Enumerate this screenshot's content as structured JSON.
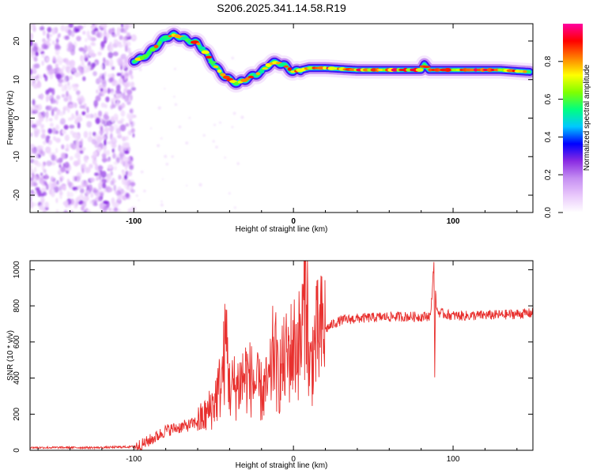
{
  "title": "S206.2025.341.14.58.R19",
  "chart_data": [
    {
      "type": "heatmap",
      "xlabel": "Height of straight line (km)",
      "ylabel": "Frequency (Hz)",
      "xlim": [
        -165,
        150
      ],
      "ylim": [
        -24.5,
        24.5
      ],
      "xticks": [
        -100,
        0,
        100
      ],
      "yticks": [
        -20,
        -10,
        0,
        10,
        20
      ],
      "colorbar": {
        "label": "Normalized spectral amplitude",
        "range": [
          0.0,
          1.0
        ],
        "ticks": [
          "0.0",
          "0.2",
          "0.4",
          "0.6",
          "0.8"
        ],
        "colormap": [
          "#ffffff",
          "#e9c8fb",
          "#c58ef2",
          "#8a2be2",
          "#0000ff",
          "#00c8ff",
          "#00ff80",
          "#80ff00",
          "#ffff00",
          "#ff8000",
          "#ff0000",
          "#ff00a0"
        ]
      },
      "ridge": {
        "x": [
          -100,
          -95,
          -90,
          -85,
          -80,
          -75,
          -70,
          -65,
          -60,
          -55,
          -50,
          -45,
          -40,
          -35,
          -30,
          -25,
          -20,
          -15,
          -10,
          -5,
          0,
          5,
          10,
          20,
          40,
          60,
          80,
          82,
          85,
          90,
          100,
          110,
          120,
          130,
          140,
          148
        ],
        "y": [
          15,
          15.5,
          17,
          19,
          21,
          21.5,
          21,
          20,
          19.5,
          17,
          14,
          11.5,
          10,
          9,
          10,
          11,
          12,
          14,
          14.5,
          13.5,
          12,
          12.5,
          13,
          13,
          12.5,
          12.5,
          12.5,
          14,
          12.5,
          12.5,
          12.5,
          12.5,
          12.5,
          12.5,
          12.2,
          12
        ]
      },
      "noise_region_x": [
        -165,
        -100
      ]
    },
    {
      "type": "line",
      "xlabel": "Height of straight line (km)",
      "ylabel": "SNR (10 * v/v)",
      "xlim": [
        -165,
        150
      ],
      "ylim": [
        0,
        1050
      ],
      "xticks": [
        -100,
        0,
        100
      ],
      "yticks": [
        0,
        200,
        400,
        600,
        800,
        1000
      ],
      "line_color": "#e8302e",
      "series": [
        {
          "x": [
            -165,
            -120,
            -100,
            -95,
            -90,
            -85,
            -80,
            -75,
            -70,
            -65,
            -60,
            -55,
            -50,
            -45,
            -42,
            -40,
            -35,
            -30,
            -25,
            -20,
            -15,
            -12,
            -10,
            -5,
            0,
            5,
            8,
            10,
            12,
            15,
            20,
            25,
            30,
            40,
            50,
            60,
            70,
            80,
            86,
            88,
            88.5,
            89,
            90,
            92,
            100,
            110,
            120,
            130,
            140,
            150
          ],
          "y": [
            15,
            15,
            20,
            30,
            55,
            80,
            110,
            120,
            130,
            140,
            160,
            190,
            260,
            380,
            620,
            340,
            360,
            420,
            380,
            320,
            360,
            600,
            400,
            500,
            570,
            600,
            990,
            400,
            540,
            620,
            670,
            700,
            720,
            730,
            735,
            740,
            740,
            740,
            745,
            1050,
            420,
            860,
            770,
            760,
            745,
            745,
            748,
            750,
            755,
            760
          ]
        }
      ]
    }
  ]
}
